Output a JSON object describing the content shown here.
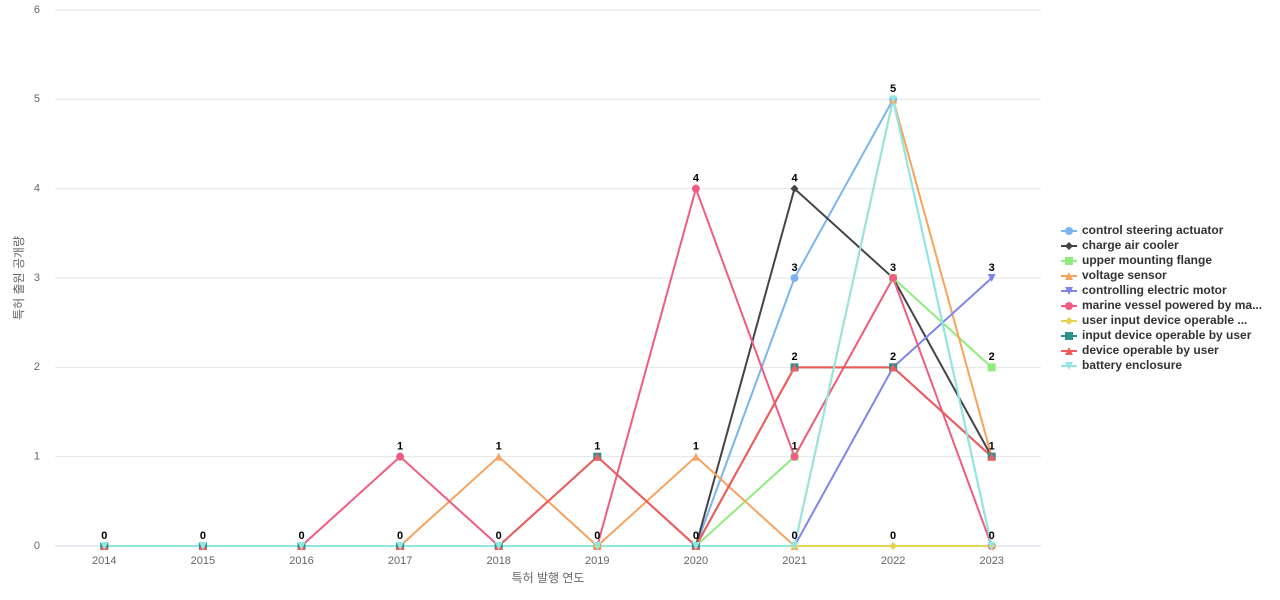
{
  "chart_data": {
    "type": "line",
    "x_label": "특허 발행 연도",
    "y_label": "특허 출원 공개량",
    "categories": [
      "2014",
      "2015",
      "2016",
      "2017",
      "2018",
      "2019",
      "2020",
      "2021",
      "2022",
      "2023"
    ],
    "ylim": [
      0,
      6
    ],
    "yticks": [
      0,
      1,
      2,
      3,
      4,
      5,
      6
    ],
    "grid": true,
    "legend": "right",
    "series": [
      {
        "name": "control steering actuator",
        "color": "#7cb5ec",
        "marker": "circle",
        "values": [
          0,
          0,
          0,
          0,
          0,
          0,
          0,
          3,
          5,
          0
        ]
      },
      {
        "name": "charge air cooler",
        "color": "#434348",
        "marker": "diamond",
        "values": [
          0,
          0,
          0,
          0,
          0,
          0,
          0,
          4,
          3,
          1
        ]
      },
      {
        "name": "upper mounting flange",
        "color": "#90ed7d",
        "marker": "square",
        "values": [
          0,
          0,
          0,
          0,
          0,
          0,
          0,
          1,
          3,
          2
        ]
      },
      {
        "name": "voltage sensor",
        "color": "#f7a35c",
        "marker": "triangle",
        "values": [
          0,
          0,
          0,
          0,
          1,
          0,
          1,
          0,
          5,
          1
        ]
      },
      {
        "name": "controlling electric motor",
        "color": "#8085e9",
        "marker": "triangle-down",
        "values": [
          0,
          0,
          0,
          0,
          0,
          0,
          0,
          0,
          2,
          3
        ]
      },
      {
        "name": "marine vessel powered by ma...",
        "color": "#f15c80",
        "marker": "circle",
        "values": [
          0,
          0,
          0,
          1,
          0,
          0,
          4,
          1,
          3,
          0
        ]
      },
      {
        "name": "user input device operable ...",
        "color": "#e4d354",
        "marker": "diamond",
        "values": [
          0,
          0,
          0,
          0,
          0,
          0,
          0,
          0,
          0,
          0
        ]
      },
      {
        "name": "input device operable by user",
        "color": "#2b908f",
        "marker": "square",
        "values": [
          0,
          0,
          0,
          0,
          0,
          1,
          0,
          2,
          2,
          1
        ]
      },
      {
        "name": "device operable by user",
        "color": "#f45b5b",
        "marker": "triangle",
        "values": [
          0,
          0,
          0,
          0,
          0,
          1,
          0,
          2,
          2,
          1
        ]
      },
      {
        "name": "battery enclosure",
        "color": "#91e8e1",
        "marker": "triangle-down",
        "values": [
          0,
          0,
          0,
          0,
          0,
          0,
          0,
          0,
          5,
          0
        ]
      }
    ]
  }
}
